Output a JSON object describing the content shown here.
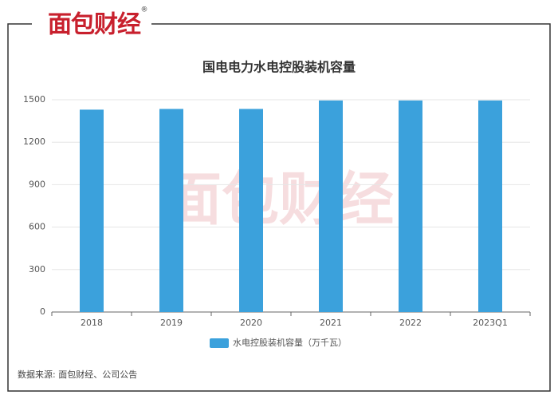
{
  "brand": "面包财经",
  "brand_mark": "®",
  "chart_data": {
    "type": "bar",
    "title": "国电电力水电控股装机容量",
    "categories": [
      "2018",
      "2019",
      "2020",
      "2021",
      "2022",
      "2023Q1"
    ],
    "series": [
      {
        "name": "水电控股装机容量（万千瓦）",
        "color": "#3ba1dc",
        "values": [
          1430,
          1435,
          1435,
          1495,
          1495,
          1495
        ]
      }
    ],
    "ylim": [
      0,
      1500
    ],
    "yticks": [
      0,
      300,
      600,
      900,
      1200,
      1500
    ],
    "grid": true,
    "source": "数据来源: 面包财经、公司公告"
  }
}
